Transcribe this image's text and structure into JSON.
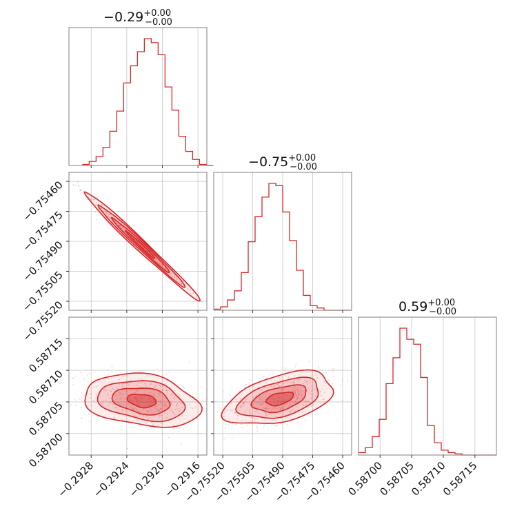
{
  "colors": {
    "accent": "#d62728",
    "frame": "#7f7f7f",
    "grid": "#c8c8c8",
    "text": "#111111"
  },
  "chart_data": {
    "type": "corner",
    "grid": true,
    "parameters": [
      {
        "title_value": "−0.29",
        "title_plus": "+0.00",
        "title_minus": "−0.00",
        "xlim": [
          -0.29305,
          -0.2915
        ],
        "ticks": [
          -0.2928,
          -0.2924,
          -0.292,
          -0.2916
        ],
        "tick_labels": [
          "−0.2928",
          "−0.2924",
          "−0.2920",
          "−0.2916"
        ],
        "hist_edges_start": -0.2929,
        "hist_bin_width": 7.75e-05,
        "hist_counts": [
          1,
          4,
          9,
          18,
          34,
          54,
          82,
          99,
          113,
          126,
          122,
          110,
          78,
          55,
          29,
          14,
          6,
          1,
          0
        ]
      },
      {
        "title_value": "−0.75",
        "title_plus": "+0.00",
        "title_minus": "−0.00",
        "lim": [
          -0.755245,
          -0.754555
        ],
        "ticks": [
          -0.7552,
          -0.75505,
          -0.7549,
          -0.75475,
          -0.7546
        ],
        "tick_labels": [
          "−0.75520",
          "−0.75505",
          "−0.75490",
          "−0.75475",
          "−0.75460"
        ],
        "hist_edges_start": -0.755245,
        "hist_bin_width": 3.45e-05,
        "hist_counts": [
          1,
          3,
          9,
          17,
          33,
          60,
          82,
          99,
          111,
          109,
          86,
          61,
          35,
          13,
          4,
          2,
          0,
          0,
          0,
          0
        ]
      },
      {
        "title_value": "0.59",
        "title_plus": "+0.00",
        "title_minus": "−0.00",
        "lim": [
          0.586966,
          0.587184
        ],
        "ticks": [
          0.587,
          0.58705,
          0.5871,
          0.58715
        ],
        "tick_labels": [
          "0.58700",
          "0.58705",
          "0.58710",
          "0.58715"
        ],
        "hist_edges_start": 0.586966,
        "hist_bin_width": 1.09e-05,
        "hist_counts": [
          2,
          6,
          15,
          29,
          58,
          79,
          103,
          94,
          90,
          63,
          24,
          10,
          4,
          2,
          1,
          0,
          0,
          0,
          0,
          0
        ]
      }
    ],
    "panels_2d": [
      {
        "x_param": 0,
        "y_param": 1,
        "center": [
          -0.29224,
          -0.75492
        ],
        "correlation": -0.99,
        "sd": [
          0.00031,
          0.00013
        ]
      },
      {
        "x_param": 0,
        "y_param": 2,
        "center": [
          -0.29223,
          0.587052
        ],
        "correlation": -0.25,
        "sd": [
          0.00031,
          2e-05
        ]
      },
      {
        "x_param": 1,
        "y_param": 2,
        "center": [
          -0.754915,
          0.587055
        ],
        "correlation": 0.45,
        "sd": [
          0.00013,
          2e-05
        ]
      }
    ],
    "contour_levels_sigma": [
      0.5,
      1.0,
      1.5,
      2.0
    ]
  }
}
